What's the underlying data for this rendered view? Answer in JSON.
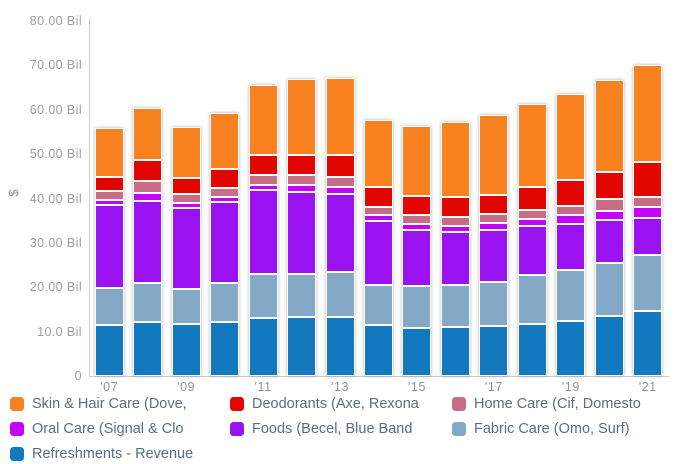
{
  "chart_data": {
    "type": "bar",
    "stacked": true,
    "currency": "$",
    "unit": "Bil",
    "ylabel": "$",
    "ylim": [
      0,
      80
    ],
    "grid": false,
    "legend_position": "bottom",
    "ytick_values": [
      80,
      70,
      60,
      50,
      40,
      30,
      20,
      10,
      0
    ],
    "ytick_labels": [
      "80.00 Bil",
      "70.00 Bil",
      "60.00 Bil",
      "50.00 Bil",
      "40.00 Bil",
      "30.00 Bil",
      "20.00 Bil",
      "10.0 Bil",
      "0"
    ],
    "categories": [
      "2007",
      "2008",
      "2009",
      "2010",
      "2011",
      "2012",
      "2013",
      "2014",
      "2015",
      "2016",
      "2017",
      "2018",
      "2019",
      "2020",
      "2021"
    ],
    "x_tick_labels": [
      "'07",
      "",
      "'09",
      "",
      "'11",
      "",
      "'13",
      "",
      "'15",
      "",
      "'17",
      "",
      "'19",
      "",
      "'21"
    ],
    "series": [
      {
        "name": "Refreshments - Revenue",
        "color": "#1379bf",
        "values": [
          11.4,
          12.1,
          11.7,
          12.1,
          13.0,
          13.2,
          13.3,
          11.5,
          10.9,
          11.1,
          11.3,
          11.7,
          12.4,
          13.6,
          14.7
        ]
      },
      {
        "name": "Fabric Care (Omo, Surf)",
        "color": "#84a9c6",
        "values": [
          8.4,
          8.9,
          7.8,
          8.8,
          10.1,
          9.9,
          10.2,
          9.0,
          9.3,
          9.3,
          9.9,
          11.0,
          11.5,
          11.9,
          12.5
        ]
      },
      {
        "name": "Foods (Becel, Blue Band",
        "color": "#9a12f0",
        "values": [
          18.7,
          18.4,
          18.4,
          18.4,
          18.9,
          18.3,
          17.6,
          14.4,
          12.6,
          12.1,
          11.6,
          11.1,
          10.3,
          9.6,
          8.5
        ]
      },
      {
        "name": "Oral Care (Signal & Clo",
        "color": "#c403fb",
        "values": [
          1.1,
          1.9,
          1.0,
          1.0,
          1.1,
          1.6,
          1.5,
          1.4,
          1.5,
          1.4,
          1.7,
          1.6,
          2.1,
          2.2,
          2.3
        ]
      },
      {
        "name": "Home Care (Cif, Domesto",
        "color": "#c96d87",
        "values": [
          2.2,
          2.7,
          2.2,
          2.1,
          2.1,
          2.2,
          2.3,
          1.7,
          2.1,
          2.0,
          2.1,
          2.1,
          2.1,
          2.7,
          2.4
        ]
      },
      {
        "name": "Deodorants (Axe, Rexona",
        "color": "#e10600",
        "values": [
          3.1,
          4.6,
          3.6,
          4.3,
          4.7,
          4.7,
          4.8,
          4.5,
          4.1,
          4.4,
          4.1,
          5.0,
          5.7,
          6.0,
          7.8
        ]
      },
      {
        "name": "Skin & Hair Care (Dove,",
        "color": "#f8821f",
        "values": [
          10.9,
          11.9,
          11.4,
          12.6,
          15.7,
          17.0,
          17.4,
          15.3,
          15.9,
          16.9,
          18.2,
          18.8,
          19.5,
          20.7,
          21.8
        ]
      }
    ],
    "totals": [
      55.8,
      60.5,
      56.1,
      59.3,
      65.6,
      66.9,
      67.1,
      57.8,
      56.4,
      57.2,
      58.9,
      61.3,
      63.6,
      66.7,
      70.0
    ],
    "legend": {
      "items": [
        {
          "label": "Skin & Hair Care (Dove,",
          "color": "#f8821f"
        },
        {
          "label": "Deodorants (Axe, Rexona",
          "color": "#e10600"
        },
        {
          "label": "Home Care (Cif, Domesto",
          "color": "#c96d87"
        },
        {
          "label": "Oral Care (Signal & Clo",
          "color": "#c403fb"
        },
        {
          "label": "Foods (Becel, Blue Band",
          "color": "#9a12f0"
        },
        {
          "label": "Fabric Care (Omo, Surf)",
          "color": "#84a9c6"
        },
        {
          "label": "Refreshments - Revenue",
          "color": "#1379bf"
        }
      ]
    }
  }
}
